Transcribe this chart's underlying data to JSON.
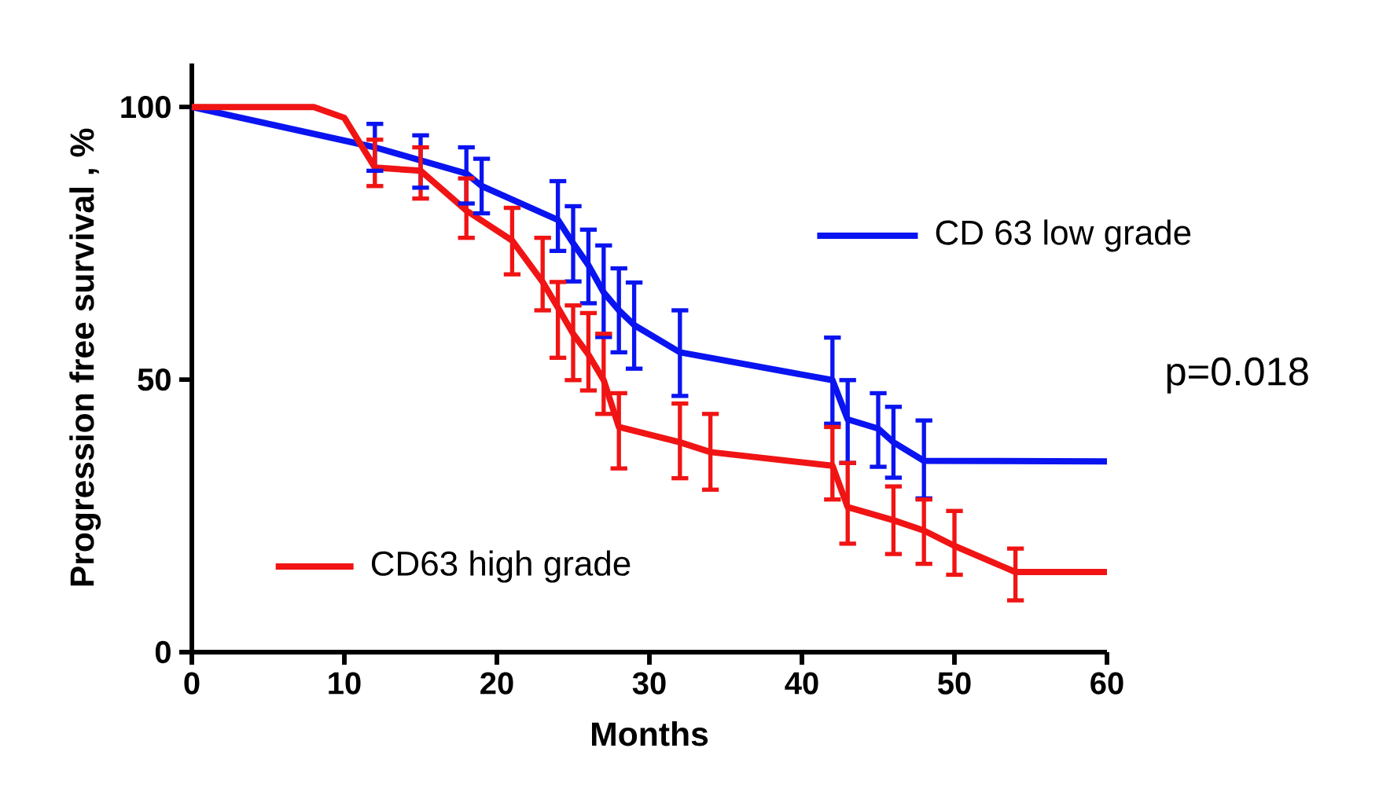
{
  "chart_data": {
    "type": "line",
    "xlabel": "Months",
    "ylabel": "Progression free survival , %",
    "xlim": [
      0,
      60
    ],
    "ylim": [
      0,
      108
    ],
    "xticks": [
      0,
      10,
      20,
      30,
      40,
      50,
      60
    ],
    "yticks": [
      0,
      50,
      100
    ],
    "annotations": [
      "p=0.018"
    ],
    "legend": "right",
    "series": [
      {
        "name": "CD 63 low grade",
        "color": "#0a14f0",
        "x": [
          0,
          12,
          15,
          18,
          19,
          24,
          25,
          26,
          27,
          28,
          29,
          32,
          42,
          43,
          45,
          46,
          48,
          60
        ],
        "values": [
          100,
          92.6,
          90.2,
          87.8,
          85.5,
          79.3,
          75,
          71,
          66,
          62.7,
          60,
          55,
          49.9,
          42.7,
          41,
          38.5,
          35.1,
          35
        ],
        "errors": [
          null,
          [
            88.3,
            96.9
          ],
          [
            85.2,
            94.8
          ],
          [
            82.3,
            92.6
          ],
          [
            80.5,
            90.5
          ],
          [
            73.6,
            86.4
          ],
          [
            68,
            81.8
          ],
          [
            64,
            77.5
          ],
          [
            57.8,
            74.6
          ],
          [
            55,
            70.4
          ],
          [
            52,
            67.8
          ],
          [
            47,
            62.7
          ],
          [
            41.9,
            57.7
          ],
          [
            34.7,
            49.9
          ],
          [
            34,
            47.5
          ],
          [
            32,
            45
          ],
          [
            28.2,
            42.5
          ],
          null
        ]
      },
      {
        "name": "CD63 high grade",
        "color": "#f01414",
        "x": [
          0,
          8,
          10,
          12,
          15,
          18,
          21,
          23,
          24,
          25,
          26,
          27,
          28,
          32,
          34,
          42,
          43,
          46,
          48,
          50,
          54,
          60
        ],
        "values": [
          100,
          100,
          98,
          88.9,
          88.3,
          81,
          75.5,
          67.9,
          63.2,
          58.4,
          54.6,
          49.9,
          41.3,
          38.5,
          36.7,
          34.2,
          26.6,
          24.2,
          22.3,
          19.5,
          14.7,
          14.7
        ],
        "errors": [
          null,
          null,
          null,
          [
            85.5,
            94
          ],
          [
            83.2,
            92.6
          ],
          [
            76,
            86.9
          ],
          [
            69.3,
            81.5
          ],
          [
            62.7,
            76
          ],
          [
            54,
            67.9
          ],
          [
            49.9,
            63.6
          ],
          [
            48,
            62.2
          ],
          [
            43.7,
            58.4
          ],
          [
            33.7,
            47.5
          ],
          [
            31.9,
            45.6
          ],
          [
            29.8,
            43.7
          ],
          [
            28,
            41.3
          ],
          [
            19.9,
            34.7
          ],
          [
            18,
            30.4
          ],
          [
            16.2,
            28
          ],
          [
            14.2,
            25.9
          ],
          [
            9.5,
            19
          ],
          null
        ]
      }
    ]
  }
}
